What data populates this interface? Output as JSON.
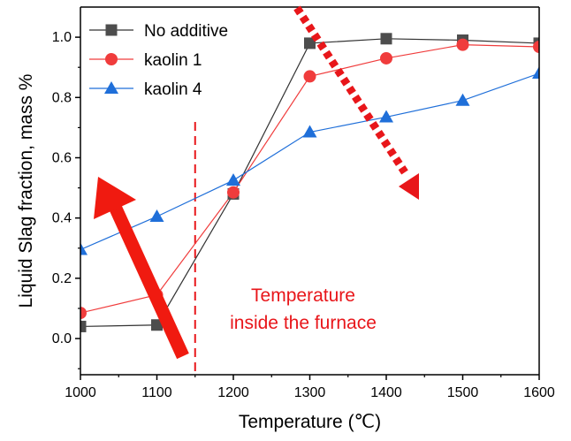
{
  "chart_data": {
    "type": "line",
    "xlabel": "Temperature (℃)",
    "ylabel": "Liquid Slag fraction, mass %",
    "xlim": [
      1000,
      1600
    ],
    "ylim": [
      -0.12,
      1.1
    ],
    "x_ticks": [
      1000,
      1100,
      1200,
      1300,
      1400,
      1500,
      1600
    ],
    "y_ticks": [
      0.0,
      0.2,
      0.4,
      0.6,
      0.8,
      1.0
    ],
    "x_tick_labels": [
      "1000",
      "1100",
      "1200",
      "1300",
      "1400",
      "1500",
      "1600"
    ],
    "y_tick_labels": [
      "0.0",
      "0.2",
      "0.4",
      "0.6",
      "0.8",
      "1.0"
    ],
    "x": [
      1000,
      1100,
      1200,
      1300,
      1400,
      1500,
      1600
    ],
    "series": [
      {
        "name": "No additive",
        "marker": "square",
        "color": "#4d4d4d",
        "line_color": "#333333",
        "values": [
          0.04,
          0.045,
          0.48,
          0.98,
          0.995,
          0.99,
          0.98
        ]
      },
      {
        "name": "kaolin 1",
        "marker": "circle",
        "color": "#f03c3c",
        "line_color": "#f03c3c",
        "values": [
          0.085,
          0.145,
          0.485,
          0.87,
          0.93,
          0.975,
          0.968
        ]
      },
      {
        "name": "kaolin 4",
        "marker": "triangle",
        "color": "#1f6fd9",
        "line_color": "#1f6fd9",
        "values": [
          0.295,
          0.405,
          0.525,
          0.685,
          0.735,
          0.79,
          0.88
        ]
      }
    ],
    "legend_position": "top-left",
    "grid": false,
    "annotations": {
      "text_line1": "Temperature",
      "text_line2": "inside the furnace",
      "text_color": "#e8161a",
      "vline_x": 1150,
      "vline_color": "#e8161a",
      "solid_arrow_color": "#f01a10",
      "dotted_arrow_color": "#e8161a"
    }
  }
}
